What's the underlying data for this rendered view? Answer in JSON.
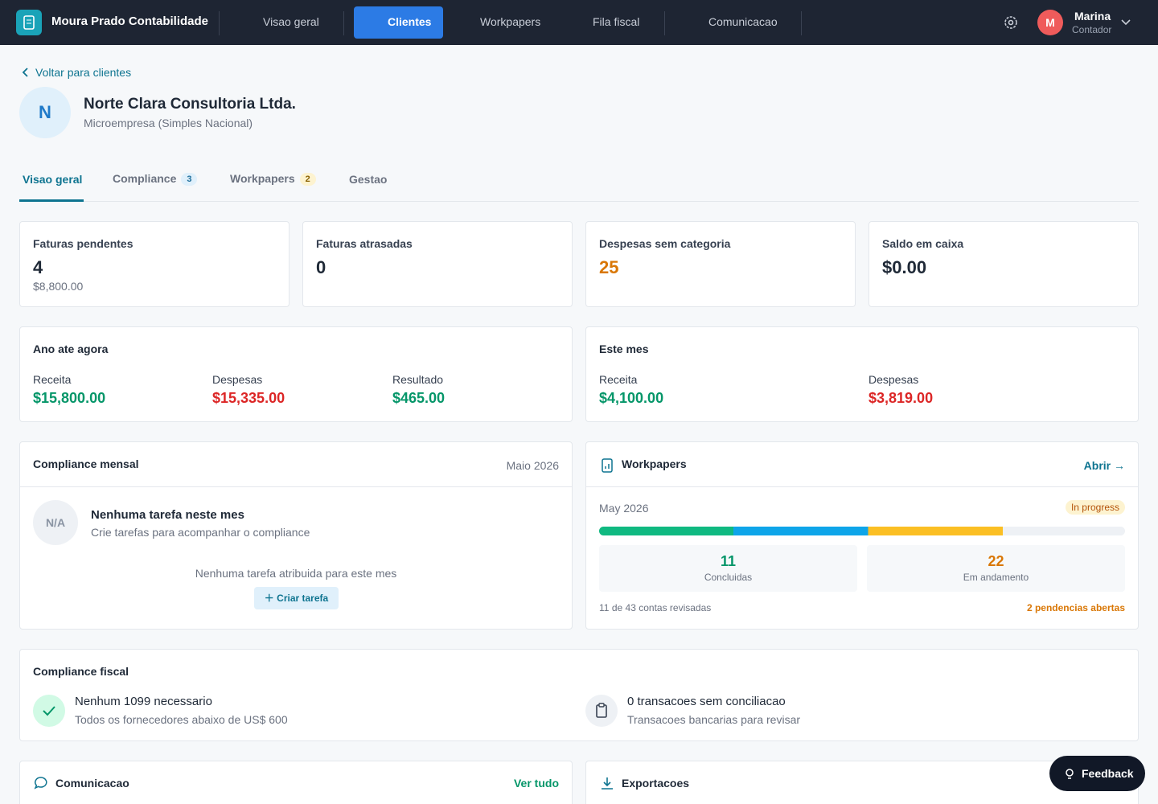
{
  "nav": {
    "brand": "Moura Prado Contabilidade",
    "items": [
      "Visao geral",
      "Clientes",
      "Workpapers",
      "Fila fiscal",
      "Comunicacao"
    ],
    "user": {
      "initial": "M",
      "name": "Marina",
      "role": "Contador"
    }
  },
  "back_link": "Voltar para clientes",
  "client": {
    "initial": "N",
    "name": "Norte Clara Consultoria Ltda.",
    "type": "Microempresa (Simples Nacional)"
  },
  "tabs": [
    {
      "label": "Visao geral"
    },
    {
      "label": "Compliance",
      "count": 3
    },
    {
      "label": "Workpapers",
      "count": 2
    },
    {
      "label": "Gestao"
    }
  ],
  "stats": [
    {
      "label": "Faturas pendentes",
      "value": 4,
      "detail": "$8,800.00"
    },
    {
      "label": "Faturas atrasadas",
      "value": 0
    },
    {
      "label": "Despesas sem categoria",
      "value": 25
    },
    {
      "label": "Saldo em caixa",
      "value": "$0.00"
    }
  ],
  "ytd": {
    "title": "Ano ate agora",
    "items": [
      {
        "label": "Receita",
        "value": "$15,800.00"
      },
      {
        "label": "Despesas",
        "value": "$15,335.00"
      },
      {
        "label": "Resultado",
        "value": "$465.00"
      }
    ]
  },
  "month": {
    "title": "Este mes",
    "items": [
      {
        "label": "Receita",
        "value": "$4,100.00"
      },
      {
        "label": "Despesas",
        "value": "$3,819.00"
      }
    ]
  },
  "compliance_monthly": {
    "title": "Compliance mensal",
    "period": "Maio 2026",
    "badge": "N/A",
    "heading": "Nenhuma tarefa neste mes",
    "subtext": "Crie tarefas para acompanhar o compliance",
    "empty": "Nenhuma tarefa atribuida para este mes",
    "button": "Criar tarefa"
  },
  "workpapers": {
    "title": "Workpapers",
    "link": "Abrir →",
    "period": "May 2026",
    "status": "In progress",
    "done": {
      "value": 11,
      "label": "Concluidas"
    },
    "in_progress": {
      "value": 22,
      "label": "Em andamento"
    },
    "footer": {
      "reviewed": 11,
      "of": "de",
      "total": 43,
      "suffix": "contas revisadas"
    },
    "open_issues": "2 pendencias abertas"
  },
  "compliance_fiscal": {
    "title": "Compliance fiscal",
    "items": [
      {
        "title": "Nenhum 1099 necessario",
        "subtitle": "Todos os fornecedores abaixo de US$ 600"
      },
      {
        "title": "0 transacoes sem conciliacao",
        "subtitle": "Transacoes bancarias para revisar"
      }
    ]
  },
  "communication": {
    "title": "Comunicacao",
    "link": "Ver tudo"
  },
  "exports": {
    "title": "Exportacoes"
  },
  "feedback": "Feedback"
}
